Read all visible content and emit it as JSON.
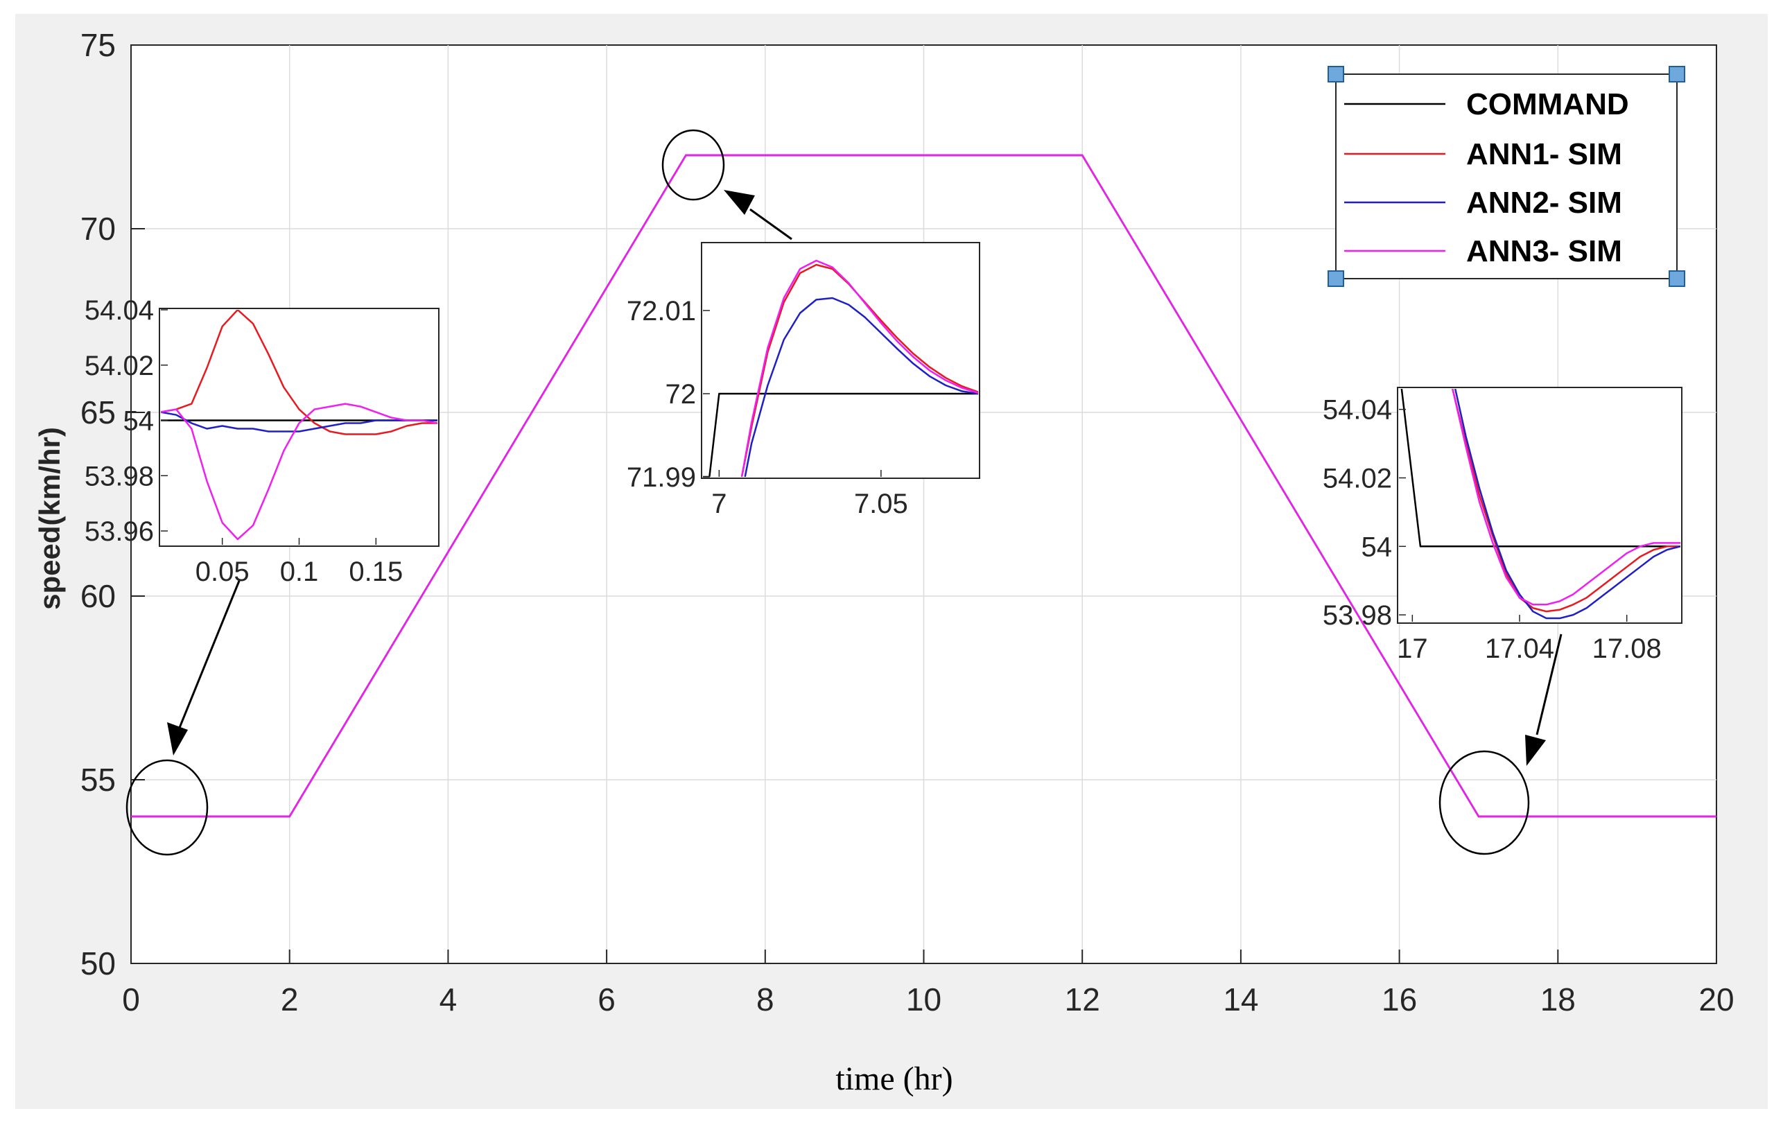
{
  "colors": {
    "command": "#000000",
    "ann1": "#e8191f",
    "ann2": "#1f1fc8",
    "ann3": "#f01ef0",
    "axes_bg": "#ffffff",
    "figure_bg": "#f0f0f0",
    "grid": "#dcdcdc",
    "legend_handle": "#6fa8dc"
  },
  "chart_data": [
    {
      "type": "line",
      "xlabel": "time (hr)",
      "ylabel": "speed(km/hr)",
      "xlim": [
        0,
        20
      ],
      "ylim": [
        50,
        75
      ],
      "xticks": [
        0,
        2,
        4,
        6,
        8,
        10,
        12,
        14,
        16,
        18,
        20
      ],
      "yticks": [
        50,
        55,
        60,
        65,
        70,
        75
      ],
      "grid": true,
      "legend": {
        "placement": "top-right",
        "entries": [
          "COMMAND",
          "ANN1- SIM",
          "ANN2- SIM",
          "ANN3- SIM"
        ]
      },
      "series": [
        {
          "name": "COMMAND",
          "color_key": "command",
          "x": [
            0,
            2,
            7,
            12,
            17,
            20
          ],
          "y": [
            54,
            54,
            72,
            72,
            54,
            54
          ]
        },
        {
          "name": "ANN1- SIM",
          "color_key": "ann1",
          "x": [
            0,
            2,
            7,
            12,
            17,
            20
          ],
          "y": [
            54,
            54,
            72,
            72,
            54,
            54
          ]
        },
        {
          "name": "ANN2- SIM",
          "color_key": "ann2",
          "x": [
            0,
            2,
            7,
            12,
            17,
            20
          ],
          "y": [
            54,
            54,
            72,
            72,
            54,
            54
          ]
        },
        {
          "name": "ANN3- SIM",
          "color_key": "ann3",
          "x": [
            0,
            2,
            7,
            12,
            17,
            20
          ],
          "y": [
            54,
            54,
            72,
            72,
            54,
            54
          ]
        }
      ]
    },
    {
      "type": "line",
      "panel": "inset-start",
      "xlim": [
        0.01,
        0.19
      ],
      "ylim": [
        53.955,
        54.04
      ],
      "xticks": [
        0.05,
        0.1,
        0.15
      ],
      "xtick_labels": [
        "0.05",
        "0.1",
        "0.15"
      ],
      "yticks": [
        53.96,
        53.98,
        54,
        54.02,
        54.04
      ],
      "ytick_labels": [
        "53.96",
        "53.98",
        "54",
        "54.02",
        "54.04"
      ],
      "grid": false,
      "series": [
        {
          "name": "COMMAND",
          "color_key": "command",
          "x": [
            0.01,
            0.19
          ],
          "y": [
            54.0,
            54.0
          ]
        },
        {
          "name": "ANN1- SIM",
          "color_key": "ann1",
          "x": [
            0.01,
            0.02,
            0.03,
            0.04,
            0.05,
            0.06,
            0.07,
            0.08,
            0.09,
            0.1,
            0.11,
            0.12,
            0.13,
            0.14,
            0.15,
            0.16,
            0.17,
            0.18,
            0.19
          ],
          "y": [
            54.003,
            54.004,
            54.006,
            54.019,
            54.034,
            54.04,
            54.035,
            54.024,
            54.012,
            54.004,
            53.999,
            53.996,
            53.995,
            53.995,
            53.995,
            53.996,
            53.998,
            53.999,
            53.999
          ]
        },
        {
          "name": "ANN2- SIM",
          "color_key": "ann2",
          "x": [
            0.01,
            0.02,
            0.03,
            0.04,
            0.05,
            0.06,
            0.07,
            0.08,
            0.09,
            0.1,
            0.11,
            0.12,
            0.13,
            0.14,
            0.15,
            0.16,
            0.17,
            0.18,
            0.19
          ],
          "y": [
            54.003,
            54.002,
            53.999,
            53.997,
            53.998,
            53.997,
            53.997,
            53.996,
            53.996,
            53.996,
            53.997,
            53.998,
            53.999,
            53.999,
            54.0,
            54.0,
            54.0,
            54.0,
            54.0
          ]
        },
        {
          "name": "ANN3- SIM",
          "color_key": "ann3",
          "x": [
            0.01,
            0.02,
            0.03,
            0.04,
            0.05,
            0.06,
            0.07,
            0.08,
            0.09,
            0.1,
            0.11,
            0.12,
            0.13,
            0.14,
            0.15,
            0.16,
            0.17,
            0.18,
            0.19
          ],
          "y": [
            54.003,
            54.004,
            53.997,
            53.978,
            53.963,
            53.957,
            53.962,
            53.975,
            53.989,
            53.999,
            54.004,
            54.005,
            54.006,
            54.005,
            54.003,
            54.001,
            54.0,
            54.0,
            53.999
          ]
        }
      ]
    },
    {
      "type": "line",
      "panel": "inset-peak",
      "xlim": [
        6.995,
        7.08
      ],
      "ylim": [
        71.99,
        72.018
      ],
      "xticks": [
        7,
        7.05
      ],
      "xtick_labels": [
        "7",
        "7.05"
      ],
      "yticks": [
        71.99,
        72,
        72.01
      ],
      "ytick_labels": [
        "71.99",
        "72",
        "72.01"
      ],
      "grid": false,
      "series": [
        {
          "name": "COMMAND",
          "color_key": "command",
          "x": [
            6.995,
            6.997,
            7.0,
            7.08
          ],
          "y": [
            71.99,
            71.99,
            72.0,
            72.0
          ]
        },
        {
          "name": "ANN1- SIM",
          "color_key": "ann1",
          "x": [
            7.007,
            7.01,
            7.015,
            7.02,
            7.025,
            7.03,
            7.035,
            7.04,
            7.045,
            7.05,
            7.055,
            7.06,
            7.065,
            7.07,
            7.075,
            7.08
          ],
          "y": [
            71.99,
            71.996,
            72.005,
            72.011,
            72.0145,
            72.0155,
            72.015,
            72.0132,
            72.011,
            72.0088,
            72.0067,
            72.0048,
            72.0032,
            72.0019,
            72.0009,
            72.0002
          ]
        },
        {
          "name": "ANN2- SIM",
          "color_key": "ann2",
          "x": [
            7.008,
            7.01,
            7.015,
            7.02,
            7.025,
            7.03,
            7.035,
            7.04,
            7.045,
            7.05,
            7.055,
            7.06,
            7.065,
            7.07,
            7.075,
            7.08
          ],
          "y": [
            71.99,
            71.994,
            72.001,
            72.0065,
            72.0097,
            72.0113,
            72.0115,
            72.0107,
            72.0092,
            72.0073,
            72.0054,
            72.0036,
            72.0021,
            72.001,
            72.0003,
            72.0
          ]
        },
        {
          "name": "ANN3- SIM",
          "color_key": "ann3",
          "x": [
            7.007,
            7.01,
            7.015,
            7.02,
            7.025,
            7.03,
            7.035,
            7.04,
            7.045,
            7.05,
            7.055,
            7.06,
            7.065,
            7.07,
            7.075,
            7.08
          ],
          "y": [
            71.99,
            71.9965,
            72.0055,
            72.0115,
            72.015,
            72.016,
            72.0152,
            72.0133,
            72.0109,
            72.0085,
            72.0063,
            72.0044,
            72.0028,
            72.0016,
            72.0007,
            72.0001
          ]
        }
      ]
    },
    {
      "type": "line",
      "panel": "inset-end",
      "xlim": [
        16.995,
        17.1
      ],
      "ylim": [
        53.978,
        54.046
      ],
      "xticks": [
        17,
        17.04,
        17.08
      ],
      "xtick_labels": [
        "17",
        "17.04",
        "17.08"
      ],
      "yticks": [
        53.98,
        54,
        54.02,
        54.04
      ],
      "ytick_labels": [
        "53.98",
        "54",
        "54.02",
        "54.04"
      ],
      "grid": false,
      "series": [
        {
          "name": "COMMAND",
          "color_key": "command",
          "x": [
            16.996,
            17.003,
            17.1
          ],
          "y": [
            54.046,
            54.0,
            54.0
          ]
        },
        {
          "name": "ANN1- SIM",
          "color_key": "ann1",
          "x": [
            17.015,
            17.02,
            17.025,
            17.03,
            17.035,
            17.04,
            17.045,
            17.05,
            17.055,
            17.06,
            17.065,
            17.07,
            17.075,
            17.08,
            17.085,
            17.09,
            17.095,
            17.1
          ],
          "y": [
            54.046,
            54.03,
            54.015,
            54.003,
            53.992,
            53.985,
            53.982,
            53.981,
            53.9815,
            53.983,
            53.985,
            53.988,
            53.991,
            53.994,
            53.997,
            53.999,
            54.0,
            54.0
          ]
        },
        {
          "name": "ANN2- SIM",
          "color_key": "ann2",
          "x": [
            17.016,
            17.02,
            17.025,
            17.03,
            17.035,
            17.04,
            17.045,
            17.05,
            17.055,
            17.06,
            17.065,
            17.07,
            17.075,
            17.08,
            17.085,
            17.09,
            17.095,
            17.1
          ],
          "y": [
            54.046,
            54.032,
            54.017,
            54.004,
            53.993,
            53.986,
            53.981,
            53.979,
            53.979,
            53.98,
            53.982,
            53.985,
            53.988,
            53.991,
            53.994,
            53.997,
            53.999,
            54.0
          ]
        },
        {
          "name": "ANN3- SIM",
          "color_key": "ann3",
          "x": [
            17.015,
            17.02,
            17.025,
            17.03,
            17.035,
            17.04,
            17.045,
            17.05,
            17.055,
            17.06,
            17.065,
            17.07,
            17.075,
            17.08,
            17.085,
            17.09,
            17.095,
            17.1
          ],
          "y": [
            54.046,
            54.029,
            54.013,
            54.001,
            53.991,
            53.985,
            53.983,
            53.983,
            53.984,
            53.986,
            53.989,
            53.992,
            53.995,
            53.998,
            54.0,
            54.001,
            54.001,
            54.001
          ]
        }
      ]
    }
  ]
}
